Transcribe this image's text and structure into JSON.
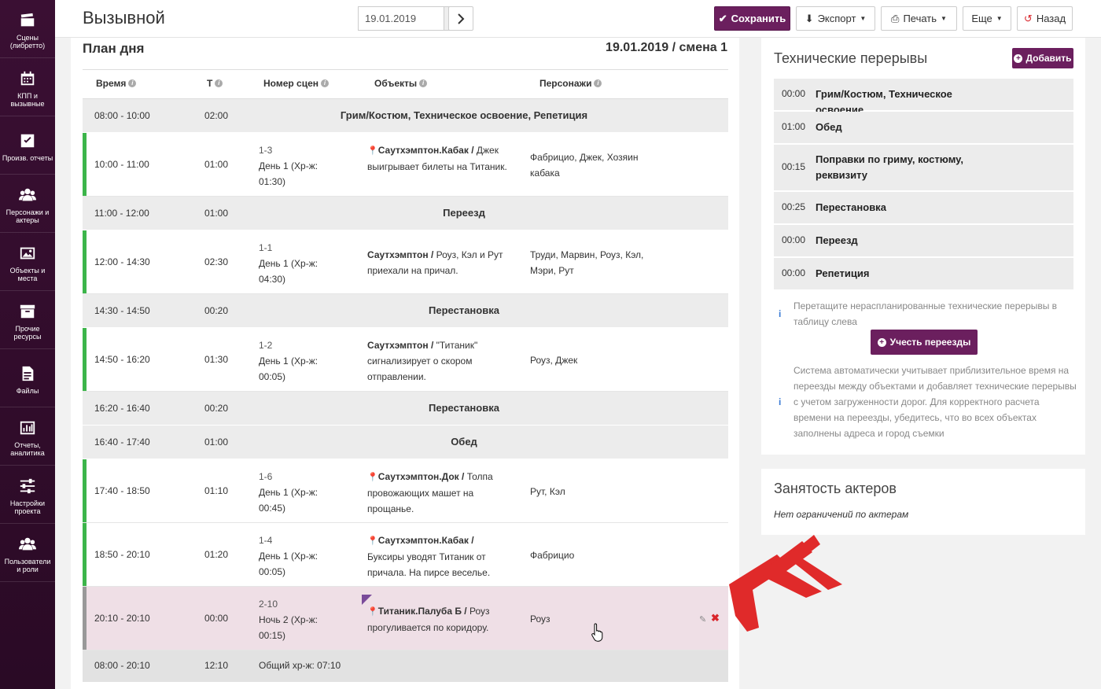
{
  "sidebar": {
    "items": [
      {
        "label": "Сцены (либретто)",
        "icon": "clapperboard-icon"
      },
      {
        "label": "КПП и вызывные",
        "icon": "calendar-icon"
      },
      {
        "label": "Произв. отчеты",
        "icon": "checkbox-icon"
      },
      {
        "label": "Персонажи и актеры",
        "icon": "people-icon"
      },
      {
        "label": "Объекты и места",
        "icon": "image-icon"
      },
      {
        "label": "Прочие ресурсы",
        "icon": "archive-icon"
      },
      {
        "label": "Файлы",
        "icon": "file-icon"
      },
      {
        "label": "Отчеты, аналитика",
        "icon": "bar-chart-icon"
      },
      {
        "label": "Настройки проекта",
        "icon": "sliders-icon"
      },
      {
        "label": "Пользователи и роли",
        "icon": "users-icon"
      }
    ]
  },
  "header": {
    "title": "Вызывной",
    "date_value": "19.01.2019",
    "save_label": "Сохранить",
    "export_label": "Экспорт",
    "print_label": "Печать",
    "more_label": "Еще",
    "back_label": "Назад"
  },
  "plan": {
    "title": "План дня",
    "date_shift": "19.01.2019 / смена 1",
    "columns": {
      "time": "Время",
      "t": "Т",
      "scene_nums": "Номер сцен",
      "objects": "Объекты",
      "characters": "Персонажи"
    },
    "rows": [
      {
        "kind": "break",
        "time": "08:00 - 10:00",
        "t": "02:00",
        "title": "Грим/Костюм, Техническое освоение, Репетиция"
      },
      {
        "kind": "scene",
        "time": "10:00 - 11:00",
        "t": "01:00",
        "num": "1-3",
        "day": "День 1 (Хр-ж: 01:30)",
        "obj_name": "Саутхэмптон.Кабак",
        "obj_desc": " Джек выигрывает билеты на Титаник.",
        "chars": "Фабрицио, Джек, Хозяин кабака"
      },
      {
        "kind": "break",
        "time": "11:00 - 12:00",
        "t": "01:00",
        "title": "Переезд"
      },
      {
        "kind": "scene",
        "time": "12:00 - 14:30",
        "t": "02:30",
        "num": "1-1",
        "day": "День 1 (Хр-ж: 04:30)",
        "obj_name": "Саутхэмптон",
        "obj_desc": " Роуз, Кэл и Рут приехали на причал.",
        "chars": "Труди, Марвин, Роуз, Кэл, Мэри, Рут"
      },
      {
        "kind": "break",
        "time": "14:30 - 14:50",
        "t": "00:20",
        "title": "Перестановка"
      },
      {
        "kind": "scene",
        "time": "14:50 - 16:20",
        "t": "01:30",
        "num": "1-2",
        "day": "День 1 (Хр-ж: 00:05)",
        "obj_name": "Саутхэмптон",
        "obj_desc": " \"Титаник\" сигнализирует о скором отправлении.",
        "chars": "Роуз, Джек"
      },
      {
        "kind": "break",
        "time": "16:20 - 16:40",
        "t": "00:20",
        "title": "Перестановка"
      },
      {
        "kind": "break",
        "time": "16:40 - 17:40",
        "t": "01:00",
        "title": "Обед"
      },
      {
        "kind": "scene",
        "time": "17:40 - 18:50",
        "t": "01:10",
        "num": "1-6",
        "day": "День 1 (Хр-ж: 00:45)",
        "obj_name": "Саутхэмптон.Док",
        "obj_desc": " Толпа провожающих машет на прощанье.",
        "chars": "Рут, Кэл"
      },
      {
        "kind": "scene",
        "time": "18:50 - 20:10",
        "t": "01:20",
        "num": "1-4",
        "day": "День 1 (Хр-ж: 00:05)",
        "obj_name": "Саутхэмптон.Кабак",
        "obj_desc": " Буксиры уводят Титаник от причала. На пирсе веселье.",
        "chars": "Фабрицио"
      },
      {
        "kind": "scene",
        "time": "20:10 - 20:10",
        "t": "00:00",
        "num": "2-10",
        "day": "Ночь 2 (Хр-ж: 00:15)",
        "obj_name": "Титаник.Палуба Б",
        "obj_desc": " Роуз прогуливается по коридору.",
        "chars": "Роуз"
      }
    ],
    "total": {
      "time": "08:00 - 20:10",
      "t": "12:10",
      "label": "Общий хр-ж: 07:10"
    }
  },
  "tech_breaks": {
    "title": "Технические перерывы",
    "add_label": "Добавить",
    "items": [
      {
        "t": "00:00",
        "name": "Грим/Костюм, Техническое освоение"
      },
      {
        "t": "01:00",
        "name": "Обед"
      },
      {
        "t": "00:15",
        "name": "Поправки по гриму, костюму, реквизиту"
      },
      {
        "t": "00:25",
        "name": "Перестановка"
      },
      {
        "t": "00:00",
        "name": "Переезд"
      },
      {
        "t": "00:00",
        "name": "Репетиция"
      }
    ],
    "note1": "Перетащите нераспланированные технические перерывы в таблицу слева",
    "uchet_label": "Учесть переезды",
    "note2": "Система автоматически учитывает приблизительное время на переезды между объектами и добавляет технические перерывы с учетом загруженности дорог. Для корректного расчета времени на переезды, убедитесь, что во всех объектах заполнены адреса и город съемки"
  },
  "actors": {
    "title": "Занятость актеров",
    "text": "Нет ограничений по актерам"
  },
  "colors": {
    "accent": "#6b1f5e",
    "scene_bar": "#3cb54a",
    "arrow": "#e02a2a"
  }
}
